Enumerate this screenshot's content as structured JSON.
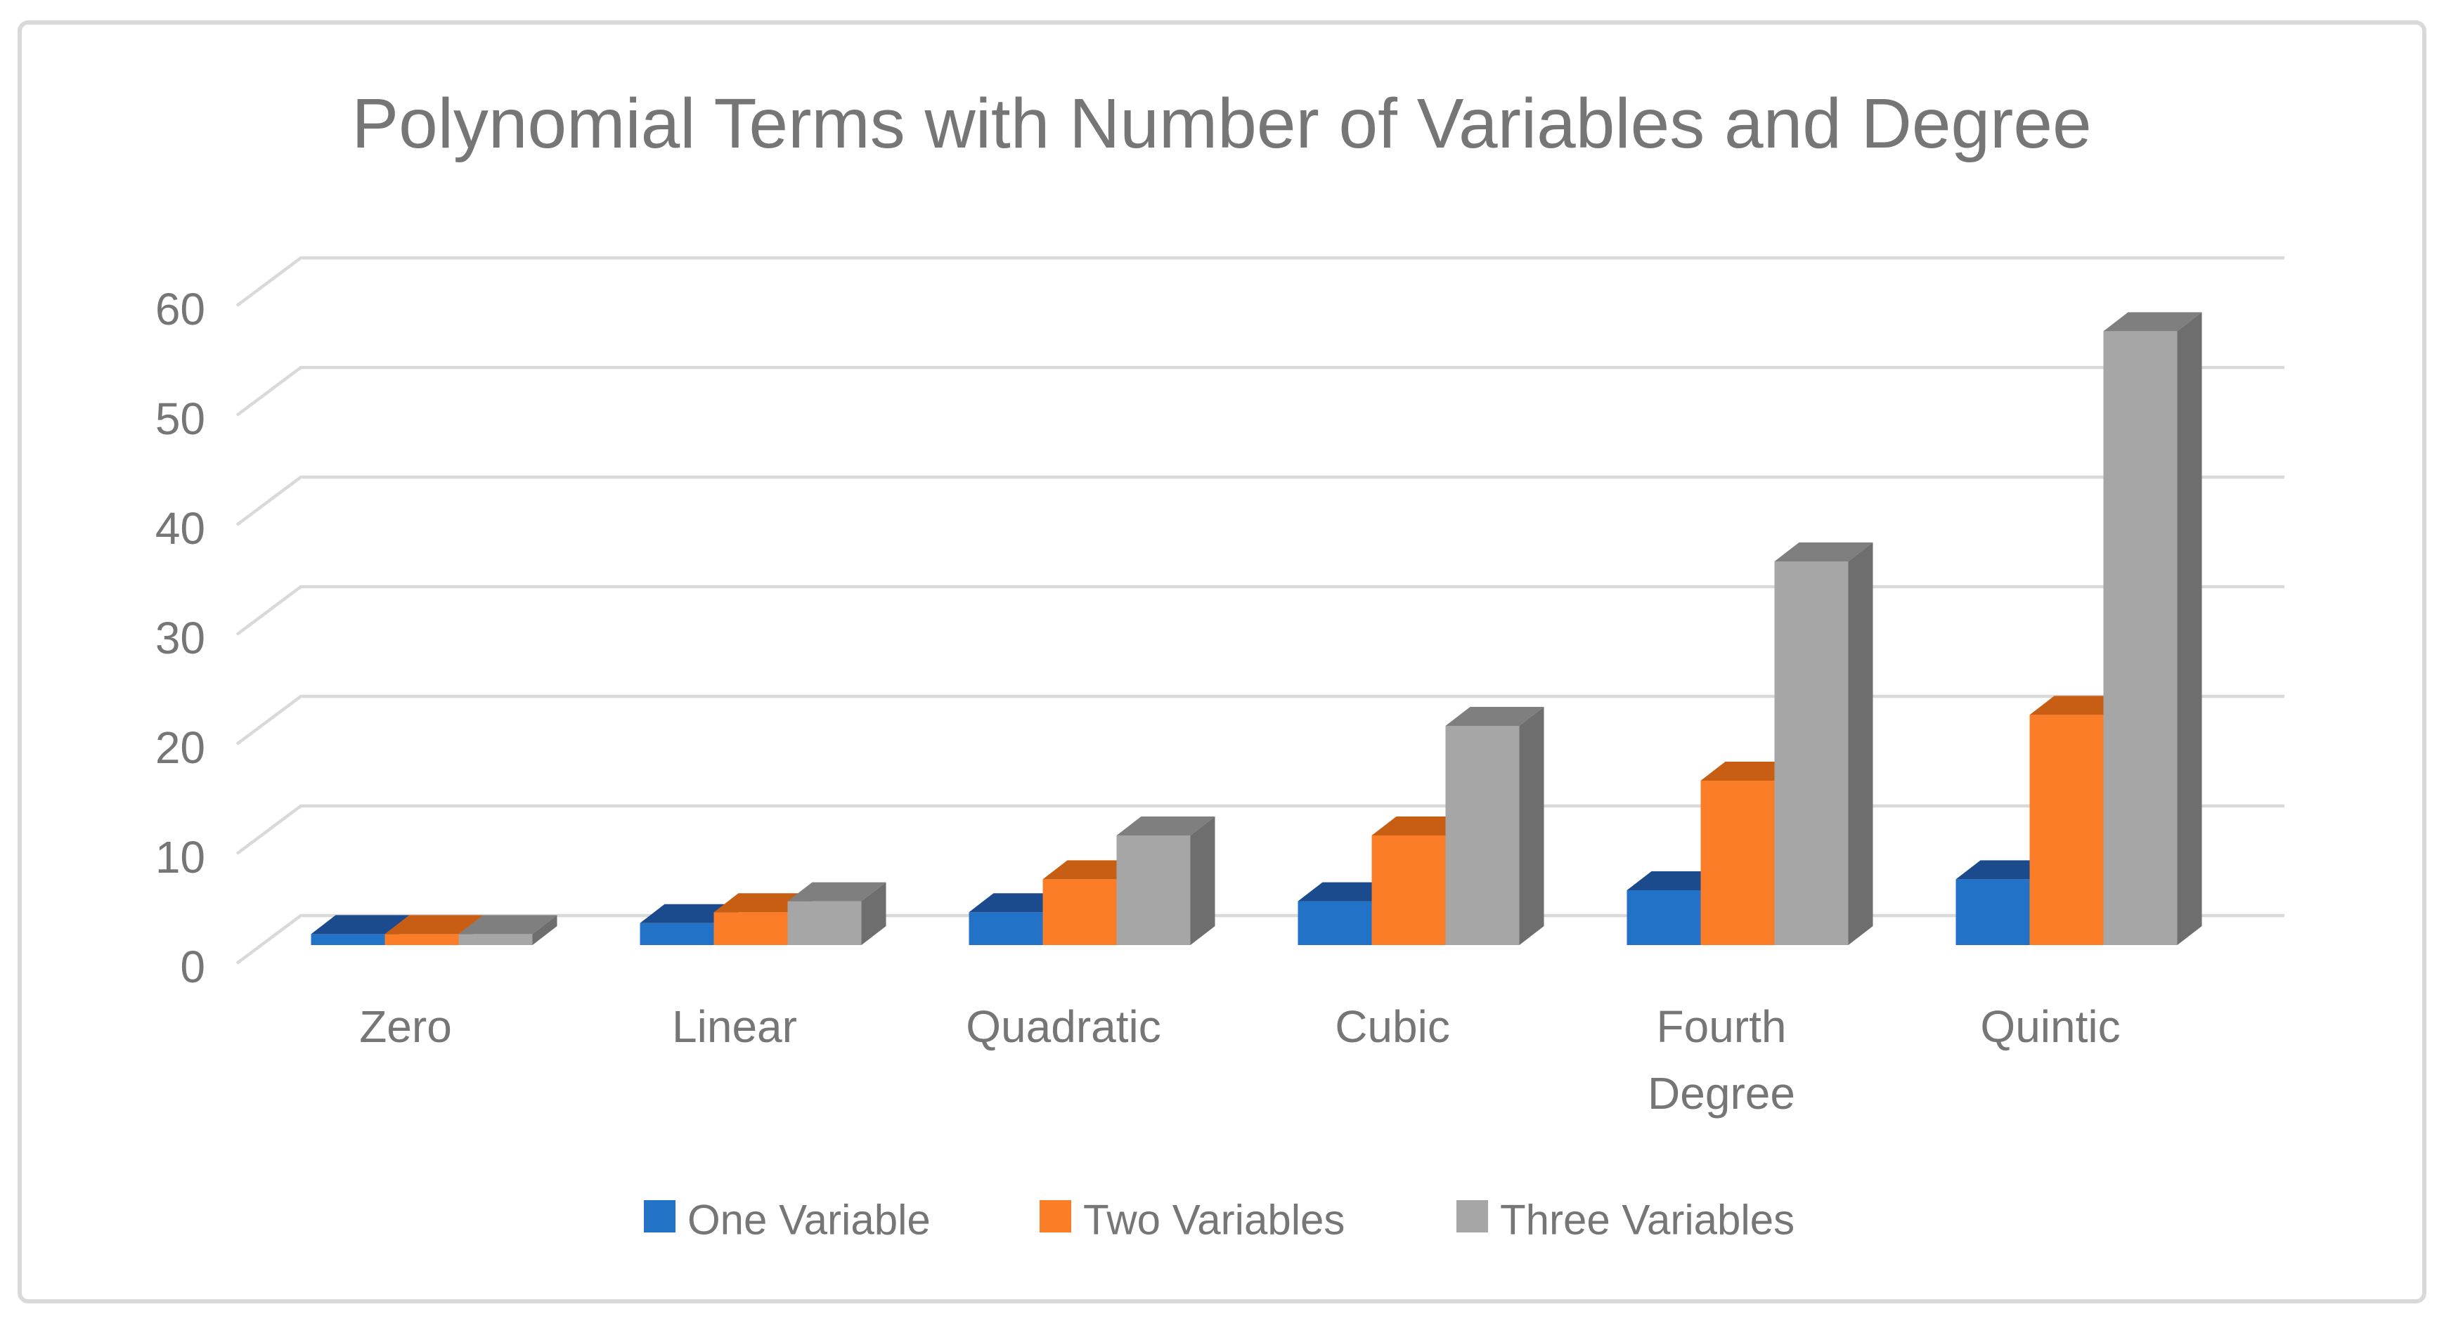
{
  "chart_data": {
    "type": "bar",
    "style": "3d-clustered-column",
    "title": "Polynomial Terms with Number of Variables and Degree",
    "categories": [
      "Zero",
      "Linear",
      "Quadratic",
      "Cubic",
      "Fourth Degree",
      "Quintic"
    ],
    "series": [
      {
        "name": "One Variable",
        "color": "#2272C8",
        "top_color": "#1B4B8C",
        "side_color": "#173F75",
        "values": [
          1,
          2,
          3,
          4,
          5,
          6
        ]
      },
      {
        "name": "Two Variables",
        "color": "#FB7D28",
        "top_color": "#C85D14",
        "side_color": "#A94E10",
        "values": [
          1,
          3,
          6,
          10,
          15,
          21
        ]
      },
      {
        "name": "Three Variables",
        "color": "#A6A6A6",
        "top_color": "#7F7F7F",
        "side_color": "#6E6E6E",
        "values": [
          1,
          4,
          10,
          20,
          35,
          56
        ]
      }
    ],
    "y_axis": {
      "min": 0,
      "max": 60,
      "step": 10,
      "tick_labels": [
        "0",
        "10",
        "20",
        "30",
        "40",
        "50",
        "60"
      ]
    },
    "legend_position": "bottom",
    "grid": true,
    "text_color": "#767676",
    "gridline_color": "#D9D9D9",
    "border_color": "#D9D9D9",
    "background": "#FFFFFF"
  }
}
